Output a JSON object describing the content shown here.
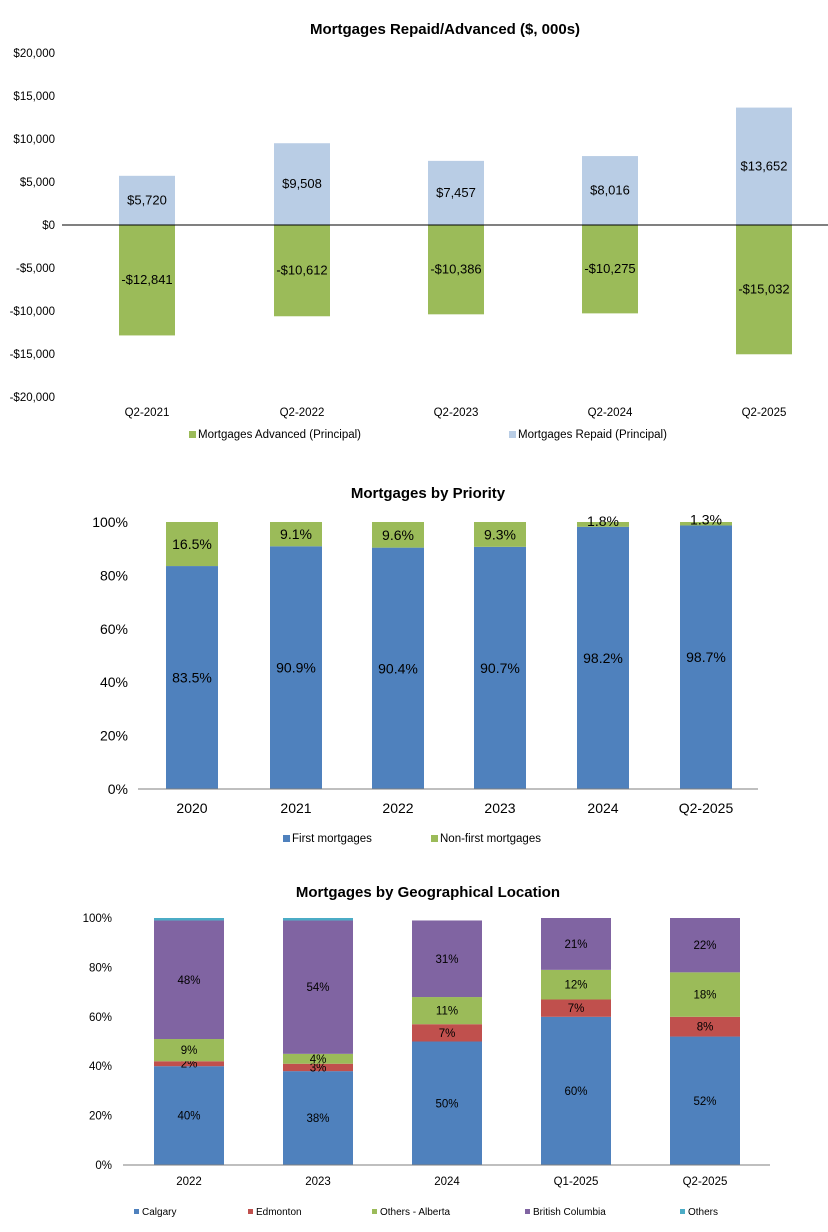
{
  "chart_data": [
    {
      "type": "bar",
      "title": "Mortgages Repaid/Advanced ($, 000s)",
      "categories": [
        "Q2-2021",
        "Q2-2022",
        "Q2-2023",
        "Q2-2024",
        "Q2-2025"
      ],
      "y_ticks": [
        "$20,000",
        "$15,000",
        "$10,000",
        "$5,000",
        "$0",
        "-$5,000",
        "-$10,000",
        "-$15,000",
        "-$20,000"
      ],
      "ylim": [
        -20000,
        20000
      ],
      "series": [
        {
          "name": "Mortgages Advanced (Principal)",
          "color": "#9bbb59",
          "values": [
            -12841,
            -10612,
            -10386,
            -10275,
            -15032
          ],
          "labels": [
            "-$12,841",
            "-$10,612",
            "-$10,386",
            "-$10,275",
            "-$15,032"
          ]
        },
        {
          "name": "Mortgages Repaid (Principal)",
          "color": "#b9cde5",
          "values": [
            5720,
            9508,
            7457,
            8016,
            13652
          ],
          "labels": [
            "$5,720",
            "$9,508",
            "$7,457",
            "$8,016",
            "$13,652"
          ]
        }
      ],
      "legend": "bottom"
    },
    {
      "type": "bar",
      "stacked": true,
      "title": "Mortgages by Priority",
      "categories": [
        "2020",
        "2021",
        "2022",
        "2023",
        "2024",
        "Q2-2025"
      ],
      "y_ticks": [
        "100%",
        "80%",
        "60%",
        "40%",
        "20%",
        "0%"
      ],
      "ylim": [
        0,
        100
      ],
      "series": [
        {
          "name": "First mortgages",
          "color": "#4f81bd",
          "values": [
            83.5,
            90.9,
            90.4,
            90.7,
            98.2,
            98.7
          ],
          "labels": [
            "83.5%",
            "90.9%",
            "90.4%",
            "90.7%",
            "98.2%",
            "98.7%"
          ]
        },
        {
          "name": "Non-first mortgages",
          "color": "#9bbb59",
          "values": [
            16.5,
            9.1,
            9.6,
            9.3,
            1.8,
            1.3
          ],
          "labels": [
            "16.5%",
            "9.1%",
            "9.6%",
            "9.3%",
            "1.8%",
            "1.3%"
          ]
        }
      ],
      "legend": "bottom"
    },
    {
      "type": "bar",
      "stacked": true,
      "title": "Mortgages by Geographical Location",
      "categories": [
        "2022",
        "2023",
        "2024",
        "Q1-2025",
        "Q2-2025"
      ],
      "y_ticks": [
        "100%",
        "80%",
        "60%",
        "40%",
        "20%",
        "0%"
      ],
      "ylim": [
        0,
        100
      ],
      "series": [
        {
          "name": "Calgary",
          "color": "#4f81bd",
          "values": [
            40,
            38,
            50,
            60,
            52
          ],
          "labels": [
            "40%",
            "38%",
            "50%",
            "60%",
            "52%"
          ]
        },
        {
          "name": "Edmonton",
          "color": "#c0504d",
          "values": [
            2,
            3,
            7,
            7,
            8
          ],
          "labels": [
            "2%",
            "3%",
            "7%",
            "7%",
            "8%"
          ]
        },
        {
          "name": "Others - Alberta",
          "color": "#9bbb59",
          "values": [
            9,
            4,
            11,
            12,
            18
          ],
          "labels": [
            "9%",
            "4%",
            "11%",
            "12%",
            "18%"
          ]
        },
        {
          "name": "British Columbia",
          "color": "#8064a2",
          "values": [
            48,
            54,
            31,
            21,
            22
          ],
          "labels": [
            "48%",
            "54%",
            "31%",
            "21%",
            "22%"
          ]
        },
        {
          "name": "Others",
          "color": "#4bacc6",
          "values": [
            1,
            1,
            0,
            0,
            0
          ],
          "labels": [
            "",
            "",
            "",
            "",
            ""
          ]
        }
      ],
      "legend": "bottom"
    }
  ]
}
